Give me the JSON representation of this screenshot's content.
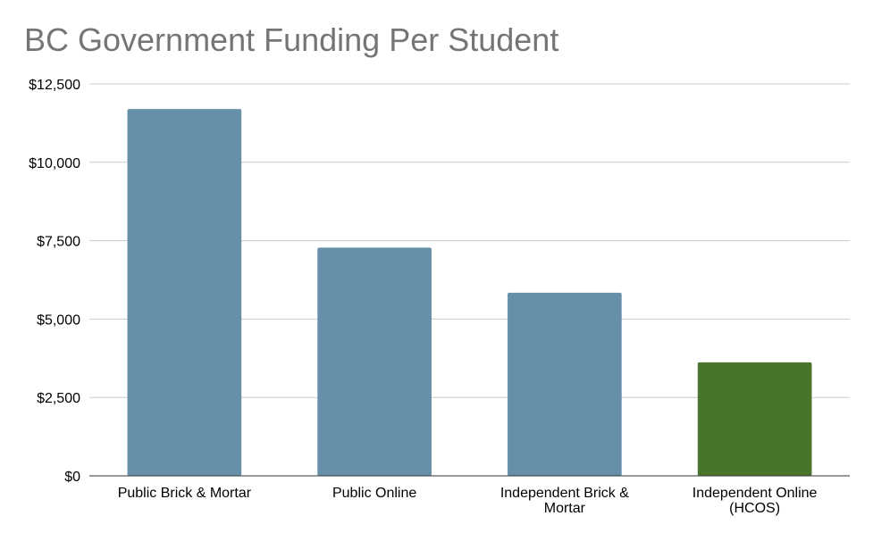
{
  "chart_data": {
    "type": "bar",
    "title": "BC Government Funding Per Student",
    "categories": [
      [
        "Public Brick & Mortar"
      ],
      [
        "Public Online"
      ],
      [
        "Independent Brick &",
        "Mortar"
      ],
      [
        "Independent Online",
        "(HCOS)"
      ]
    ],
    "values": [
      11700,
      7280,
      5840,
      3620
    ],
    "bar_colors": [
      "#6690aa",
      "#6690aa",
      "#6690aa",
      "#48742c"
    ],
    "ylim": [
      0,
      12500
    ],
    "yticks": [
      0,
      2500,
      5000,
      7500,
      10000,
      12500
    ],
    "ytick_labels": [
      "$0",
      "$2,500",
      "$5,000",
      "$7,500",
      "$10,000",
      "$12,500"
    ],
    "grid": true,
    "legend": "none"
  }
}
